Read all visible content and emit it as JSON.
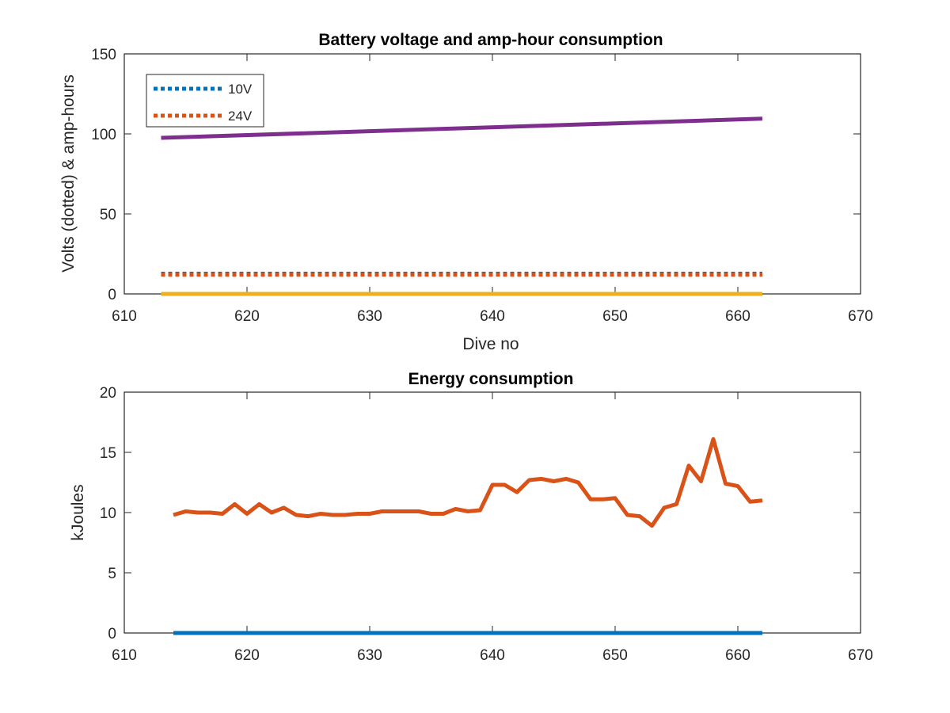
{
  "chart_data": [
    {
      "type": "line",
      "title": "Battery voltage and amp-hour consumption",
      "xlabel": "Dive no",
      "ylabel": "Volts (dotted) & amp-hours",
      "xlim": [
        610,
        670
      ],
      "ylim": [
        0,
        150
      ],
      "xticks": [
        610,
        620,
        630,
        640,
        650,
        660,
        670
      ],
      "yticks": [
        0,
        50,
        100,
        150
      ],
      "grid": false,
      "legend": {
        "position": "top-left",
        "entries": [
          "10V",
          "24V"
        ]
      },
      "series": [
        {
          "name": "10V",
          "style": "dotted",
          "color": "#0072BD",
          "x": [
            613,
            662
          ],
          "y": [
            12.6,
            12.6
          ]
        },
        {
          "name": "24V",
          "style": "dotted",
          "color": "#D95319",
          "x": [
            613,
            662
          ],
          "y": [
            12.0,
            12.0
          ]
        },
        {
          "style": "solid",
          "color": "#EDB120",
          "x": [
            613,
            662
          ],
          "y": [
            0,
            0
          ]
        },
        {
          "style": "solid",
          "color": "#7E2F8E",
          "x": [
            613,
            662
          ],
          "y": [
            97.5,
            109.5
          ]
        }
      ]
    },
    {
      "type": "line",
      "title": "Energy consumption",
      "xlabel": "",
      "ylabel": "kJoules",
      "xlim": [
        610,
        670
      ],
      "ylim": [
        0,
        20
      ],
      "xticks": [
        610,
        620,
        630,
        640,
        650,
        660,
        670
      ],
      "yticks": [
        0,
        5,
        10,
        15,
        20
      ],
      "grid": false,
      "series": [
        {
          "style": "solid",
          "color": "#0072BD",
          "x": [
            614,
            662
          ],
          "y": [
            0,
            0
          ]
        },
        {
          "style": "solid",
          "color": "#D95319",
          "x": [
            614,
            615,
            616,
            617,
            618,
            619,
            620,
            621,
            622,
            623,
            624,
            625,
            626,
            627,
            628,
            629,
            630,
            631,
            632,
            633,
            634,
            635,
            636,
            637,
            638,
            639,
            640,
            641,
            642,
            643,
            644,
            645,
            646,
            647,
            648,
            649,
            650,
            651,
            652,
            653,
            654,
            655,
            656,
            657,
            658,
            659,
            660,
            661,
            662
          ],
          "y": [
            9.8,
            10.1,
            10.0,
            10.0,
            9.9,
            10.7,
            9.9,
            10.7,
            10.0,
            10.4,
            9.8,
            9.7,
            9.9,
            9.8,
            9.8,
            9.9,
            9.9,
            10.1,
            10.1,
            10.1,
            10.1,
            9.9,
            9.9,
            10.3,
            10.1,
            10.2,
            12.3,
            12.3,
            11.7,
            12.7,
            12.8,
            12.6,
            12.8,
            12.5,
            11.1,
            11.1,
            11.2,
            9.8,
            9.7,
            8.9,
            10.4,
            10.7,
            13.9,
            12.6,
            16.1,
            12.4,
            12.2,
            10.9,
            11.0
          ]
        }
      ]
    }
  ]
}
